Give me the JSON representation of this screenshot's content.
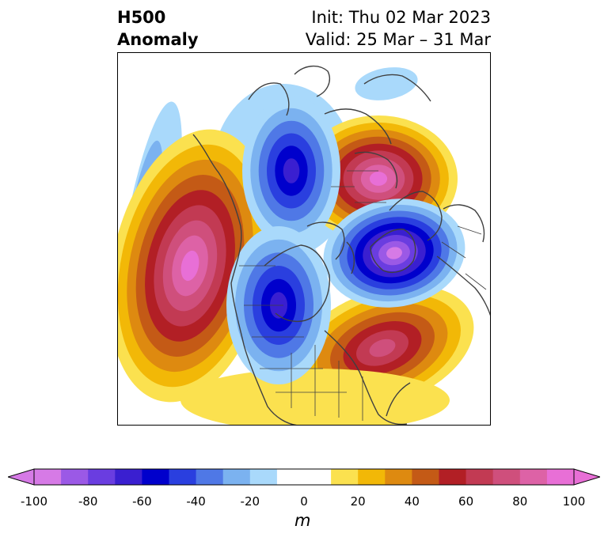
{
  "title": {
    "left_line1": "H500",
    "left_line2": "Anomaly",
    "right_line1": "Init: Thu 02 Mar 2023",
    "right_line2": "Valid: 25 Mar – 31 Mar"
  },
  "colorbar": {
    "unit": "m",
    "range": [
      -100,
      100
    ],
    "extend": "both",
    "tick_labels": [
      "-100",
      "-80",
      "-60",
      "-40",
      "-20",
      "0",
      "20",
      "40",
      "60",
      "80",
      "100"
    ],
    "colors": [
      "#d67ae6",
      "#9b59e6",
      "#6a3de0",
      "#3a1fd0",
      "#0000cc",
      "#2a3fdf",
      "#4f78e6",
      "#7bb2f0",
      "#a9d9fb",
      "#ffffff",
      "#ffffff",
      "#fbe14f",
      "#f2b807",
      "#de8a10",
      "#c45a16",
      "#b21f25",
      "#c23a53",
      "#cf4f7c",
      "#dd62a6",
      "#e86fd6"
    ]
  },
  "map": {
    "projection": "north-polar stereographic",
    "field": "500 hPa geopotential height anomaly",
    "features": [
      {
        "name": "positive-anomaly-northeast-pacific",
        "peak_m": 100
      },
      {
        "name": "positive-anomaly-siberia",
        "peak_m": 100
      },
      {
        "name": "positive-anomaly-north-atlantic",
        "peak_m": 70
      },
      {
        "name": "negative-anomaly-canada-west",
        "peak_m": -70
      },
      {
        "name": "negative-anomaly-alaska-arctic",
        "peak_m": -70
      },
      {
        "name": "negative-anomaly-scandinavia",
        "peak_m": -100
      }
    ]
  }
}
